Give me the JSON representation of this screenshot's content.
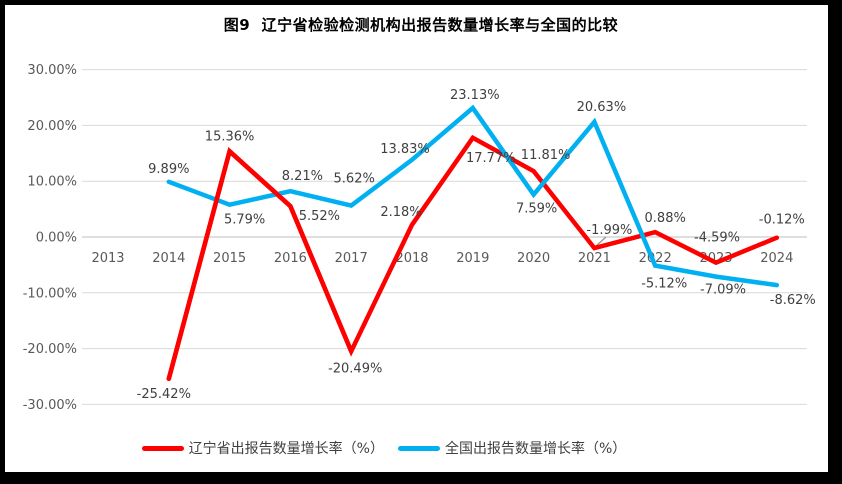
{
  "chart_data": {
    "type": "line",
    "title": "图9  辽宁省检验检测机构出报告数量增长率与全国的比较",
    "categories": [
      "2013",
      "2014",
      "2015",
      "2016",
      "2017",
      "2018",
      "2019",
      "2020",
      "2021",
      "2022",
      "2023",
      "2024"
    ],
    "y_axis": {
      "tick_labels": [
        "30.00%",
        "20.00%",
        "10.00%",
        "0.00%",
        "-10.00%",
        "-20.00%",
        "-30.00%"
      ],
      "tick_values": [
        30,
        20,
        10,
        0,
        -10,
        -20,
        -30
      ],
      "range": [
        -30,
        30
      ],
      "format": "percent_2dp"
    },
    "grid": true,
    "legend_position": "bottom",
    "series": [
      {
        "key": "liaoning",
        "name": "辽宁省出报告数量增长率（%）",
        "color": "#FE0000",
        "start_category": "2014",
        "values": [
          -25.42,
          15.36,
          5.52,
          -20.49,
          2.18,
          17.77,
          11.81,
          -1.99,
          0.88,
          -4.59,
          -0.12
        ],
        "labels": [
          "-25.42%",
          "15.36%",
          "5.52%",
          "-20.49%",
          "2.18%",
          "17.77%",
          "11.81%",
          "-1.99%",
          "0.88%",
          "-4.59%",
          "-0.12%"
        ],
        "label_offsets": [
          [
            -5,
            15
          ],
          [
            0,
            -15
          ],
          [
            29,
            10
          ],
          [
            4,
            17
          ],
          [
            -11,
            -13
          ],
          [
            18,
            20
          ],
          [
            12,
            -16
          ],
          [
            15,
            -18
          ],
          [
            10,
            -14
          ],
          [
            1,
            -25
          ],
          [
            5,
            -18
          ]
        ],
        "redraw_on_top_range": [
          0,
          3
        ]
      },
      {
        "key": "national",
        "name": "全国出报告数量增长率（%）",
        "color": "#00B0F0",
        "start_category": "2014",
        "values": [
          9.89,
          5.79,
          8.21,
          5.62,
          13.83,
          23.13,
          7.59,
          20.63,
          -5.12,
          -7.09,
          -8.62
        ],
        "labels": [
          "9.89%",
          "5.79%",
          "8.21%",
          "5.62%",
          "13.83%",
          "23.13%",
          "7.59%",
          "20.63%",
          "-5.12%",
          "-7.09%",
          "-8.62%"
        ],
        "label_offsets": [
          [
            0,
            -13
          ],
          [
            15,
            15
          ],
          [
            12,
            -15
          ],
          [
            3,
            -27
          ],
          [
            -7,
            -11
          ],
          [
            2,
            -13
          ],
          [
            3,
            14
          ],
          [
            7,
            -15
          ],
          [
            9,
            18
          ],
          [
            7,
            13
          ],
          [
            16,
            15
          ]
        ]
      }
    ],
    "annotation_leader_line": {
      "x1": 606,
      "y1": 237,
      "x2": 596,
      "y2": 246,
      "color": "#999999"
    }
  },
  "colors": {
    "liaoning_red": "#FE0000",
    "national_blue": "#00B0F0",
    "gridline": "#D9D9D9",
    "zero_axis": "#BFBFBF",
    "axis_text": "#595959",
    "data_label_text": "#404040",
    "frame": "#000000",
    "background": "#FFFFFF"
  }
}
